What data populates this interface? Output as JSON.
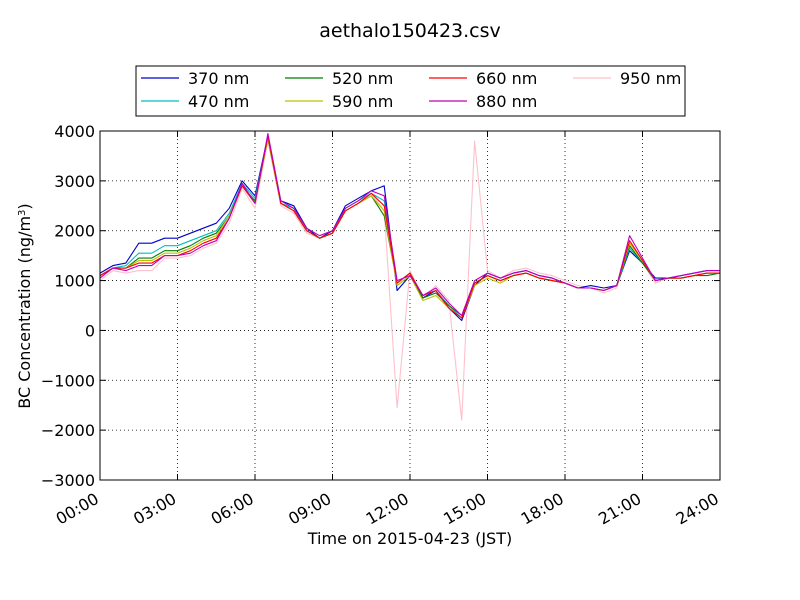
{
  "chart_data": {
    "type": "line",
    "title": "aethalo150423.csv",
    "xlabel": "Time on 2015-04-23 (JST)",
    "ylabel": "BC Concentration (ng/m",
    "ylabel_superscript": "3",
    "ylabel_suffix": ")",
    "x_unit": "hours",
    "xlim": [
      0,
      24
    ],
    "ylim": [
      -3000,
      4000
    ],
    "x_ticks": [
      0,
      3,
      6,
      9,
      12,
      15,
      18,
      21,
      24
    ],
    "x_tick_labels": [
      "00:00",
      "03:00",
      "06:00",
      "09:00",
      "12:00",
      "15:00",
      "18:00",
      "21:00",
      "24:00"
    ],
    "y_ticks": [
      -3000,
      -2000,
      -1000,
      0,
      1000,
      2000,
      3000,
      4000
    ],
    "y_tick_labels": [
      "−3000",
      "−2000",
      "−1000",
      "0",
      "1000",
      "2000",
      "3000",
      "4000"
    ],
    "grid": true,
    "legend_location": "top-center",
    "x": [
      0,
      0.5,
      1,
      1.5,
      2,
      2.5,
      3,
      3.5,
      4,
      4.5,
      5,
      5.5,
      6,
      6.5,
      7,
      7.5,
      8,
      8.5,
      9,
      9.5,
      10,
      10.5,
      11,
      11.5,
      12,
      12.5,
      13,
      13.5,
      14,
      14.5,
      15,
      15.5,
      16,
      16.5,
      17,
      17.5,
      18,
      18.5,
      19,
      19.5,
      20,
      20.5,
      21,
      21.5,
      22,
      22.5,
      23,
      23.5,
      24
    ],
    "series": [
      {
        "name": "370 nm",
        "color": "#0000cc",
        "values": [
          1150,
          1300,
          1350,
          1750,
          1750,
          1850,
          1850,
          1950,
          2050,
          2150,
          2450,
          3000,
          2700,
          3900,
          2600,
          2500,
          2050,
          1850,
          2000,
          2500,
          2650,
          2800,
          2900,
          800,
          1100,
          650,
          800,
          450,
          200,
          900,
          1150,
          1050,
          1150,
          1200,
          1100,
          1050,
          950,
          850,
          900,
          850,
          900,
          1600,
          1350,
          1050,
          1050,
          1100,
          1150,
          1200,
          1200
        ]
      },
      {
        "name": "470 nm",
        "color": "#00bfbf",
        "values": [
          1100,
          1250,
          1300,
          1550,
          1550,
          1700,
          1700,
          1800,
          1900,
          2000,
          2350,
          2950,
          2650,
          3850,
          2550,
          2450,
          2000,
          1850,
          1950,
          2450,
          2600,
          2750,
          2600,
          900,
          1100,
          700,
          800,
          500,
          250,
          950,
          1100,
          1000,
          1100,
          1150,
          1050,
          1000,
          950,
          850,
          850,
          800,
          900,
          1650,
          1350,
          1000,
          1050,
          1050,
          1100,
          1150,
          1150
        ]
      },
      {
        "name": "520 nm",
        "color": "#007f00",
        "values": [
          1100,
          1250,
          1250,
          1450,
          1450,
          1600,
          1600,
          1700,
          1850,
          1950,
          2300,
          2900,
          2600,
          3850,
          2550,
          2400,
          2000,
          1850,
          1950,
          2400,
          2550,
          2700,
          2300,
          950,
          1150,
          650,
          750,
          500,
          300,
          950,
          1100,
          1000,
          1100,
          1150,
          1050,
          1000,
          950,
          850,
          850,
          800,
          900,
          1700,
          1350,
          1000,
          1050,
          1050,
          1100,
          1100,
          1150
        ]
      },
      {
        "name": "590 nm",
        "color": "#bfbf00",
        "values": [
          1100,
          1250,
          1250,
          1400,
          1400,
          1550,
          1550,
          1650,
          1800,
          1900,
          2300,
          2900,
          2550,
          3850,
          2550,
          2400,
          2000,
          1850,
          1950,
          2400,
          2550,
          2700,
          2400,
          900,
          1100,
          600,
          700,
          450,
          250,
          900,
          1050,
          950,
          1100,
          1150,
          1050,
          1000,
          950,
          850,
          850,
          800,
          900,
          1750,
          1400,
          1000,
          1050,
          1050,
          1100,
          1150,
          1150
        ]
      },
      {
        "name": "660 nm",
        "color": "#ff0000",
        "values": [
          1100,
          1250,
          1250,
          1350,
          1350,
          1500,
          1500,
          1600,
          1750,
          1850,
          2250,
          2900,
          2550,
          3900,
          2550,
          2400,
          2000,
          1850,
          1950,
          2400,
          2550,
          2750,
          2500,
          950,
          1150,
          700,
          800,
          450,
          250,
          950,
          1100,
          1000,
          1100,
          1150,
          1050,
          1000,
          950,
          850,
          850,
          800,
          900,
          1800,
          1400,
          1000,
          1050,
          1050,
          1100,
          1150,
          1150
        ]
      },
      {
        "name": "880 nm",
        "color": "#bf00bf",
        "values": [
          1050,
          1250,
          1200,
          1300,
          1300,
          1500,
          1500,
          1550,
          1700,
          1800,
          2250,
          2950,
          2550,
          3950,
          2600,
          2450,
          2050,
          1900,
          2000,
          2450,
          2600,
          2800,
          2700,
          1000,
          1100,
          700,
          850,
          550,
          300,
          1000,
          1150,
          1050,
          1150,
          1200,
          1100,
          1050,
          950,
          850,
          850,
          800,
          900,
          1900,
          1450,
          1000,
          1050,
          1100,
          1150,
          1200,
          1200
        ]
      },
      {
        "name": "950 nm",
        "color": "#ffc0cb",
        "values": [
          1000,
          1200,
          1150,
          1200,
          1200,
          1450,
          1450,
          1500,
          1650,
          1750,
          2150,
          2850,
          2450,
          3800,
          2500,
          2350,
          1950,
          1850,
          1950,
          2400,
          2550,
          2750,
          2400,
          -1550,
          1200,
          650,
          900,
          600,
          -1800,
          3800,
          1200,
          1050,
          1200,
          1250,
          1150,
          1100,
          1000,
          900,
          850,
          750,
          850,
          1700,
          1350,
          950,
          1050,
          1050,
          1100,
          1150,
          1150
        ]
      }
    ]
  }
}
